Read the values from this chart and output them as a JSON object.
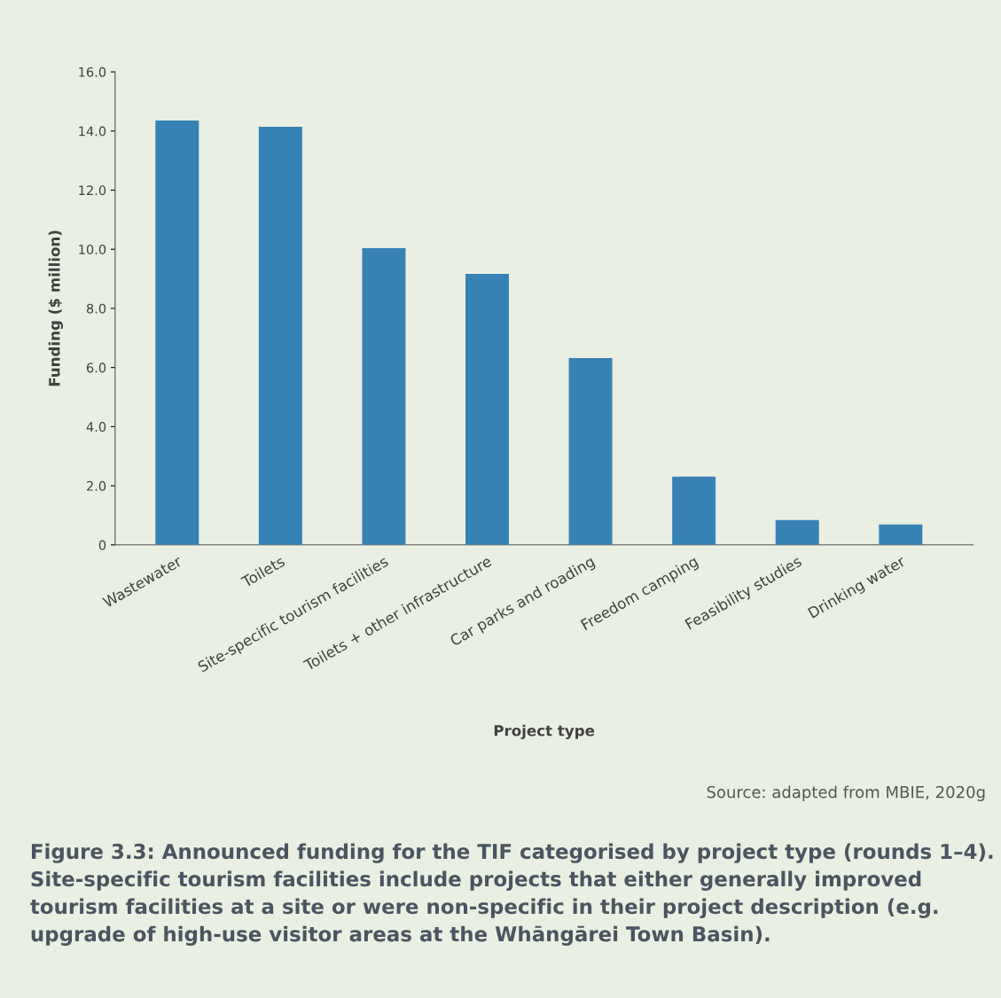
{
  "chart_data": {
    "type": "bar",
    "title": "Figure 3.3: Announced funding for the TIF categorised by project type (rounds 1–4). Site-specific tourism facilities include projects that either generally improved tourism facilities at a site or were non-specific in their project description (e.g. upgrade of high-use visitor areas at the Whāngārei Town Basin).",
    "xlabel": "Project type",
    "ylabel": "Funding ($ million)",
    "annotations": [
      "Source: adapted from MBIE, 2020g"
    ],
    "categories": [
      "Wastewater",
      "Toilets",
      "Site-specific tourism facilities",
      "Toilets + other infrastructure",
      "Car parks and roading",
      "Freedom camping",
      "Feasibility studies",
      "Drinking water"
    ],
    "values": [
      14.35,
      14.14,
      10.04,
      9.17,
      6.32,
      2.31,
      0.84,
      0.69
    ],
    "color": "#3682b5",
    "ylim": [
      0,
      16
    ],
    "yticks": [
      {
        "value": 0,
        "label": "0"
      },
      {
        "value": 2,
        "label": "2.0"
      },
      {
        "value": 4,
        "label": "4.0"
      },
      {
        "value": 6,
        "label": "6.0"
      },
      {
        "value": 8,
        "label": "8.0"
      },
      {
        "value": 10,
        "label": "10.0"
      },
      {
        "value": 12,
        "label": "12.0"
      },
      {
        "value": 14,
        "label": "14.0"
      },
      {
        "value": 16,
        "label": "16.0"
      }
    ],
    "grid": false
  }
}
